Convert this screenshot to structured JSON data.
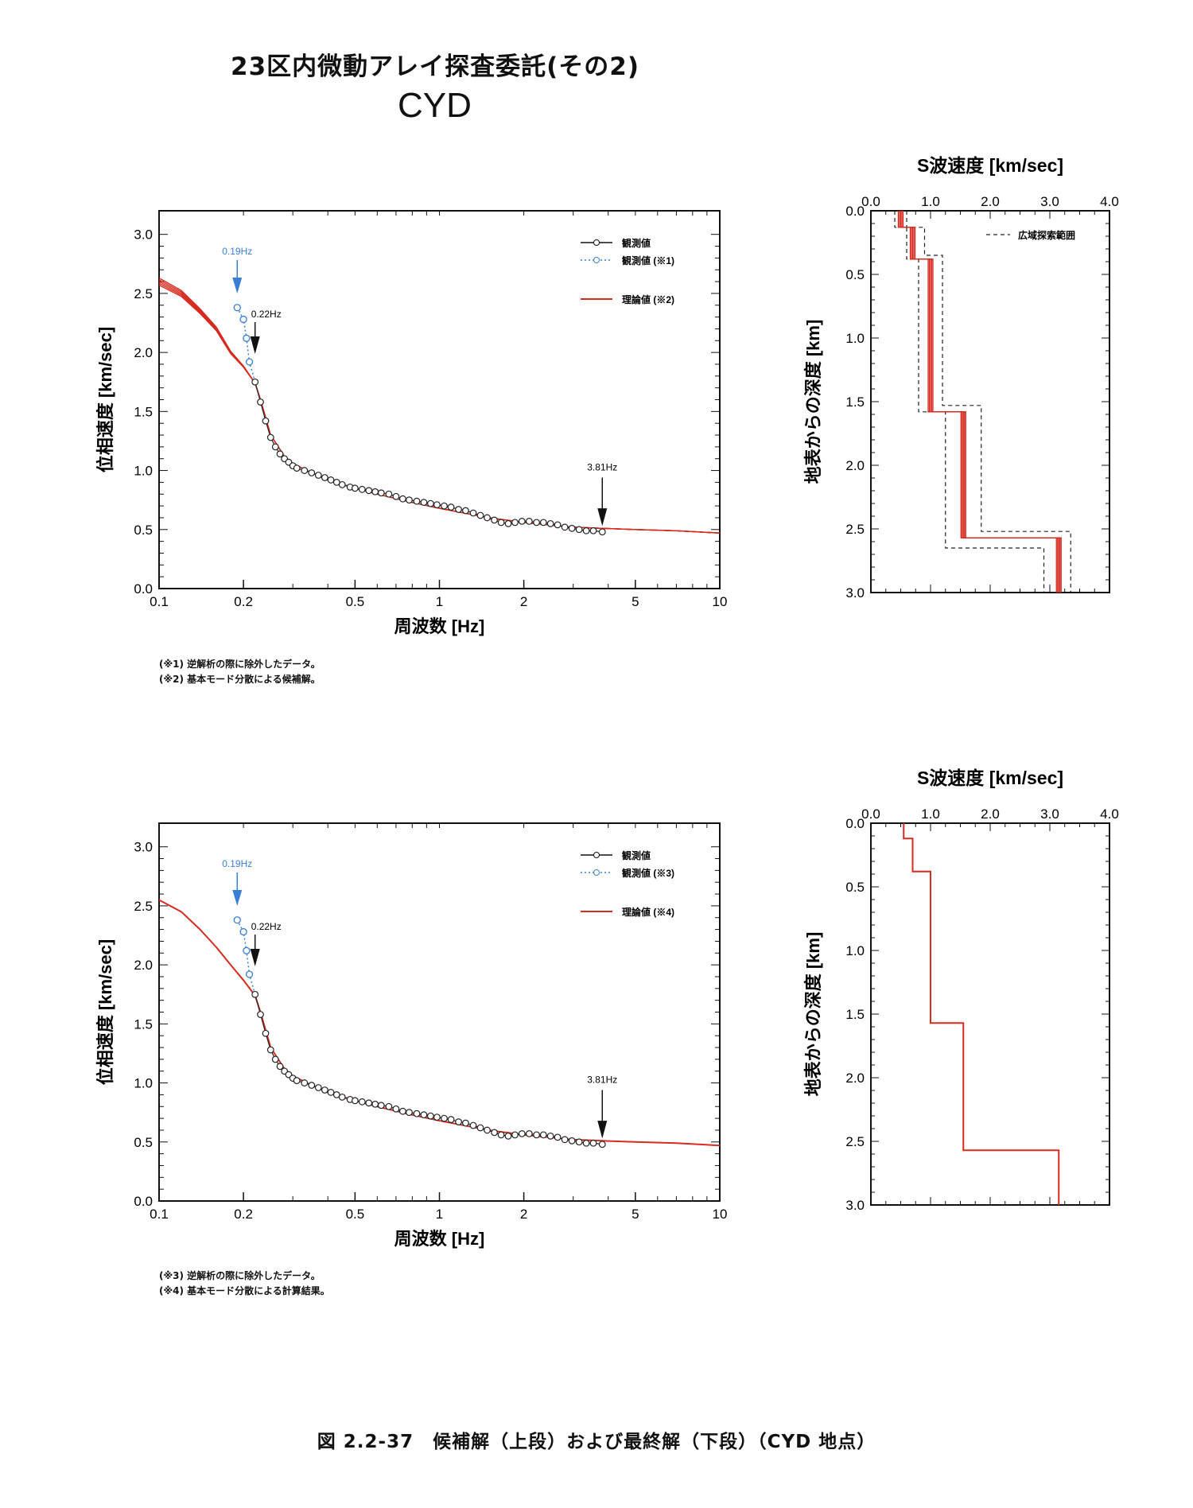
{
  "header": {
    "title": "23区内微動アレイ探査委託(その2)",
    "site": "CYD"
  },
  "caption": "図 2.2-37　候補解（上段）および最終解（下段）（CYD 地点）",
  "colors": {
    "observed": "#111111",
    "excluded": "#3a7fd5",
    "theory": "#d62b1f"
  },
  "chart_data": [
    {
      "type": "line",
      "panel": "top-dispersion",
      "xlabel": "周波数 [Hz]",
      "ylabel": "位相速度 [km/sec]",
      "xscale": "log",
      "xlim": [
        0.1,
        10
      ],
      "ylim": [
        0,
        3.2
      ],
      "xticks": [
        "0.1",
        "0.2",
        "0.5",
        "1",
        "2",
        "5",
        "10"
      ],
      "yticks": [
        "0.0",
        "0.5",
        "1.0",
        "1.5",
        "2.0",
        "2.5",
        "3.0"
      ],
      "legend": [
        "観測値",
        "観測値 (※1)",
        "理論値 (※2)"
      ],
      "legend_position": "top-right",
      "annotations": [
        "0.19Hz",
        "0.22Hz",
        "3.81Hz"
      ],
      "notes": [
        "(※1) 逆解析の際に除外したデータ。",
        "(※2) 基本モード分散による候補解。"
      ],
      "series": [
        {
          "name": "観測値",
          "x": [
            0.22,
            0.23,
            0.24,
            0.25,
            0.26,
            0.27,
            0.28,
            0.29,
            0.3,
            0.31,
            0.33,
            0.35,
            0.37,
            0.39,
            0.41,
            0.43,
            0.45,
            0.48,
            0.5,
            0.53,
            0.56,
            0.59,
            0.62,
            0.66,
            0.7,
            0.74,
            0.78,
            0.83,
            0.88,
            0.93,
            0.98,
            1.04,
            1.1,
            1.17,
            1.24,
            1.32,
            1.4,
            1.48,
            1.57,
            1.66,
            1.76,
            1.86,
            1.97,
            2.09,
            2.22,
            2.35,
            2.49,
            2.64,
            2.8,
            2.97,
            3.15,
            3.34,
            3.54,
            3.81
          ],
          "y": [
            1.75,
            1.58,
            1.42,
            1.28,
            1.2,
            1.14,
            1.1,
            1.07,
            1.04,
            1.02,
            1.0,
            0.98,
            0.96,
            0.94,
            0.92,
            0.9,
            0.88,
            0.86,
            0.85,
            0.84,
            0.83,
            0.82,
            0.81,
            0.8,
            0.78,
            0.76,
            0.75,
            0.74,
            0.73,
            0.72,
            0.71,
            0.7,
            0.69,
            0.67,
            0.66,
            0.64,
            0.62,
            0.6,
            0.58,
            0.56,
            0.55,
            0.56,
            0.57,
            0.57,
            0.56,
            0.56,
            0.55,
            0.54,
            0.52,
            0.51,
            0.5,
            0.49,
            0.49,
            0.48
          ]
        },
        {
          "name": "観測値 (※1)",
          "x": [
            0.19,
            0.2,
            0.205,
            0.21,
            0.22
          ],
          "y": [
            2.38,
            2.28,
            2.12,
            1.92,
            1.75
          ]
        },
        {
          "name": "理論値 (※2)",
          "x": [
            0.1,
            0.12,
            0.14,
            0.16,
            0.18,
            0.2,
            0.22,
            0.23,
            0.25,
            0.28,
            0.3,
            0.35,
            0.4,
            0.5,
            0.6,
            0.8,
            1,
            1.5,
            2,
            3,
            3.81,
            5,
            7,
            10
          ],
          "y": [
            2.6,
            2.5,
            2.35,
            2.2,
            2.0,
            1.88,
            1.74,
            1.6,
            1.3,
            1.12,
            1.06,
            0.98,
            0.92,
            0.85,
            0.8,
            0.73,
            0.68,
            0.6,
            0.56,
            0.52,
            0.51,
            0.5,
            0.49,
            0.47
          ]
        }
      ]
    },
    {
      "type": "line",
      "panel": "top-vs-profile",
      "title": "S波速度 [km/sec]",
      "ylabel": "地表からの深度 [km]",
      "xlim": [
        0,
        4.0
      ],
      "ylim": [
        3.0,
        0.0
      ],
      "xticks": [
        "0.0",
        "1.0",
        "2.0",
        "3.0",
        "4.0"
      ],
      "yticks": [
        "0.0",
        "0.5",
        "1.0",
        "1.5",
        "2.0",
        "2.5",
        "3.0"
      ],
      "legend": [
        "広域探索範囲"
      ],
      "legend_position": "top-right",
      "series": [
        {
          "name": "候補解",
          "vs": [
            0.5,
            0.7,
            1.0,
            1.55,
            3.15
          ],
          "depth_top": [
            0,
            0.13,
            0.38,
            1.58,
            2.57
          ]
        },
        {
          "name": "広域探索範囲 min",
          "vs": [
            0.4,
            0.6,
            0.8,
            1.25,
            2.9
          ],
          "depth_top": [
            0,
            0.13,
            0.38,
            1.58,
            2.65
          ]
        },
        {
          "name": "広域探索範囲 max",
          "vs": [
            0.6,
            0.9,
            1.2,
            1.85,
            3.35
          ],
          "depth_top": [
            0,
            0.13,
            0.35,
            1.53,
            2.52
          ]
        }
      ]
    },
    {
      "type": "line",
      "panel": "bottom-dispersion",
      "xlabel": "周波数 [Hz]",
      "ylabel": "位相速度 [km/sec]",
      "xscale": "log",
      "xlim": [
        0.1,
        10
      ],
      "ylim": [
        0,
        3.2
      ],
      "xticks": [
        "0.1",
        "0.2",
        "0.5",
        "1",
        "2",
        "5",
        "10"
      ],
      "yticks": [
        "0.0",
        "0.5",
        "1.0",
        "1.5",
        "2.0",
        "2.5",
        "3.0"
      ],
      "legend": [
        "観測値",
        "観測値 (※3)",
        "理論値 (※4)"
      ],
      "legend_position": "top-right",
      "annotations": [
        "0.19Hz",
        "0.22Hz",
        "3.81Hz"
      ],
      "notes": [
        "(※3) 逆解析の際に除外したデータ。",
        "(※4) 基本モード分散による計算結果。"
      ],
      "series": [
        {
          "name": "観測値",
          "x": [
            0.22,
            0.23,
            0.24,
            0.25,
            0.26,
            0.27,
            0.28,
            0.29,
            0.3,
            0.31,
            0.33,
            0.35,
            0.37,
            0.39,
            0.41,
            0.43,
            0.45,
            0.48,
            0.5,
            0.53,
            0.56,
            0.59,
            0.62,
            0.66,
            0.7,
            0.74,
            0.78,
            0.83,
            0.88,
            0.93,
            0.98,
            1.04,
            1.1,
            1.17,
            1.24,
            1.32,
            1.4,
            1.48,
            1.57,
            1.66,
            1.76,
            1.86,
            1.97,
            2.09,
            2.22,
            2.35,
            2.49,
            2.64,
            2.8,
            2.97,
            3.15,
            3.34,
            3.54,
            3.81
          ],
          "y": [
            1.75,
            1.58,
            1.42,
            1.28,
            1.2,
            1.14,
            1.1,
            1.07,
            1.04,
            1.02,
            1.0,
            0.98,
            0.96,
            0.94,
            0.92,
            0.9,
            0.88,
            0.86,
            0.85,
            0.84,
            0.83,
            0.82,
            0.81,
            0.8,
            0.78,
            0.76,
            0.75,
            0.74,
            0.73,
            0.72,
            0.71,
            0.7,
            0.69,
            0.67,
            0.66,
            0.64,
            0.62,
            0.6,
            0.58,
            0.56,
            0.55,
            0.56,
            0.57,
            0.57,
            0.56,
            0.56,
            0.55,
            0.54,
            0.52,
            0.51,
            0.5,
            0.49,
            0.49,
            0.48
          ]
        },
        {
          "name": "観測値 (※3)",
          "x": [
            0.19,
            0.2,
            0.205,
            0.21,
            0.22
          ],
          "y": [
            2.38,
            2.28,
            2.12,
            1.92,
            1.75
          ]
        },
        {
          "name": "理論値 (※4)",
          "x": [
            0.1,
            0.12,
            0.14,
            0.16,
            0.18,
            0.2,
            0.22,
            0.23,
            0.25,
            0.28,
            0.3,
            0.35,
            0.4,
            0.5,
            0.6,
            0.8,
            1,
            1.5,
            2,
            3,
            3.81,
            5,
            7,
            10
          ],
          "y": [
            2.55,
            2.45,
            2.3,
            2.15,
            2.0,
            1.87,
            1.74,
            1.6,
            1.3,
            1.12,
            1.06,
            0.98,
            0.92,
            0.85,
            0.8,
            0.73,
            0.68,
            0.6,
            0.56,
            0.52,
            0.51,
            0.5,
            0.49,
            0.47
          ]
        }
      ]
    },
    {
      "type": "line",
      "panel": "bottom-vs-profile",
      "title": "S波速度 [km/sec]",
      "ylabel": "地表からの深度 [km]",
      "xlim": [
        0,
        4.0
      ],
      "ylim": [
        3.0,
        0.0
      ],
      "xticks": [
        "0.0",
        "1.0",
        "2.0",
        "3.0",
        "4.0"
      ],
      "yticks": [
        "0.0",
        "0.5",
        "1.0",
        "1.5",
        "2.0",
        "2.5",
        "3.0"
      ],
      "series": [
        {
          "name": "最終解",
          "vs": [
            0.55,
            0.7,
            1.0,
            1.55,
            3.15
          ],
          "depth_top": [
            0,
            0.12,
            0.38,
            1.57,
            2.57
          ]
        }
      ]
    }
  ]
}
